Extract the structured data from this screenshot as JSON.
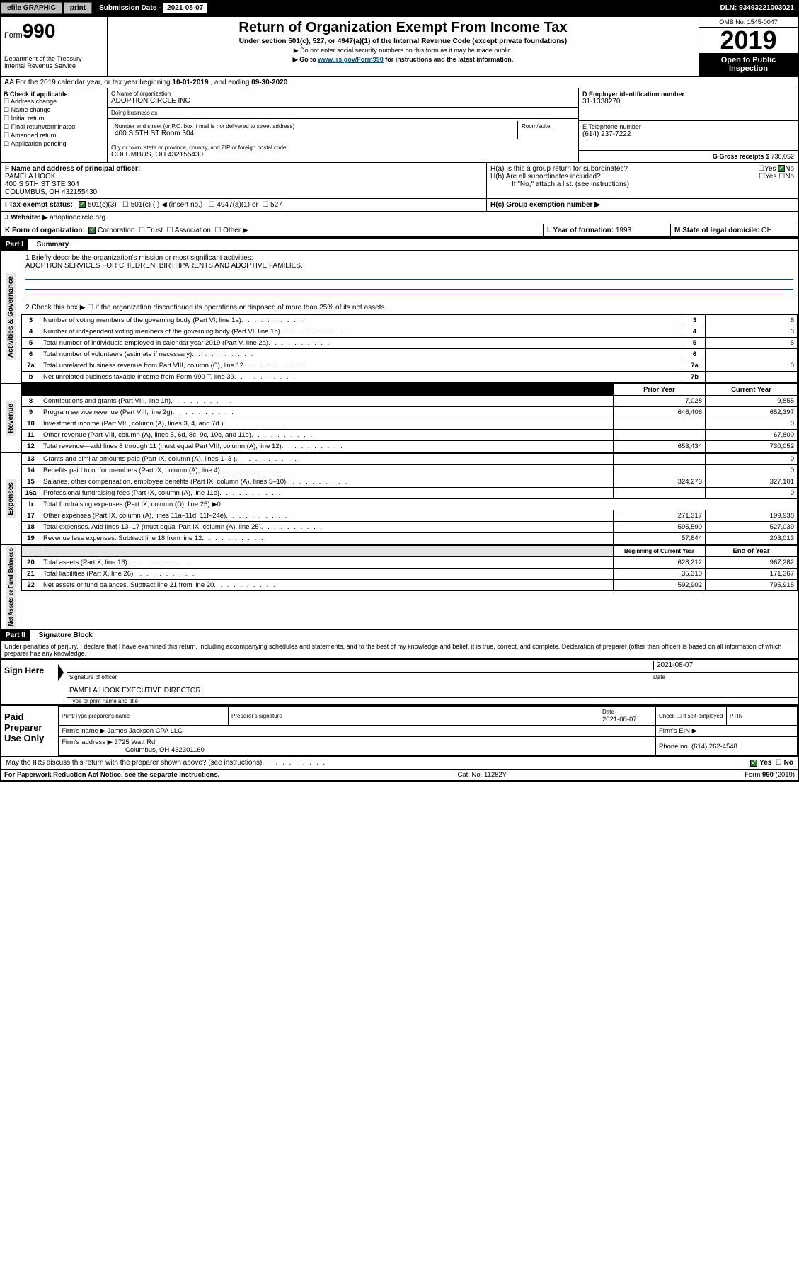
{
  "topbar": {
    "efile_label": "efile GRAPHIC",
    "print_btn": "print",
    "submission_label": "Submission Date - ",
    "submission_date": "2021-08-07",
    "dln": "DLN: 93493221003021"
  },
  "header": {
    "form_prefix": "Form",
    "form_num": "990",
    "dept": "Department of the Treasury\nInternal Revenue Service",
    "title": "Return of Organization Exempt From Income Tax",
    "subtitle": "Under section 501(c), 527, or 4947(a)(1) of the Internal Revenue Code (except private foundations)",
    "note1": "▶ Do not enter social security numbers on this form as it may be made public.",
    "note2_pre": "▶ Go to ",
    "note2_link": "www.irs.gov/Form990",
    "note2_post": " for instructions and the latest information.",
    "omb": "OMB No. 1545-0047",
    "year": "2019",
    "open": "Open to Public Inspection"
  },
  "row_a": {
    "text_pre": "A For the 2019 calendar year, or tax year beginning ",
    "begin": "10-01-2019",
    "mid": " , and ending ",
    "end": "09-30-2020"
  },
  "box_b": {
    "label": "B Check if applicable:",
    "items": [
      "Address change",
      "Name change",
      "Initial return",
      "Final return/terminated",
      "Amended return",
      "Application pending"
    ]
  },
  "box_c": {
    "name_label": "C Name of organization",
    "name": "ADOPTION CIRCLE INC",
    "dba_label": "Doing business as",
    "dba": "",
    "addr_label": "Number and street (or P.O. box if mail is not delivered to street address)",
    "room_label": "Room/suite",
    "addr": "400 S 5TH ST Room 304",
    "city_label": "City or town, state or province, country, and ZIP or foreign postal code",
    "city": "COLUMBUS, OH  432155430"
  },
  "box_d": {
    "label": "D Employer identification number",
    "val": "31-1338270"
  },
  "box_e": {
    "label": "E Telephone number",
    "val": "(614) 237-7222"
  },
  "box_g": {
    "label": "G Gross receipts $ ",
    "val": "730,052"
  },
  "box_f": {
    "label": "F Name and address of principal officer:",
    "name": "PAMELA HOOK",
    "addr1": "400 S 5TH ST STE 304",
    "addr2": "COLUMBUS, OH  432155430"
  },
  "box_h": {
    "a": "H(a)  Is this a group return for subordinates?",
    "b": "H(b)  Are all subordinates included?",
    "b_note": "If \"No,\" attach a list. (see instructions)",
    "c": "H(c)  Group exemption number ▶",
    "yes": "Yes",
    "no": "No"
  },
  "box_i": {
    "label": "I  Tax-exempt status:",
    "o1": "501(c)(3)",
    "o2": "501(c) (   ) ◀ (insert no.)",
    "o3": "4947(a)(1) or",
    "o4": "527"
  },
  "box_j": {
    "label": "J  Website: ▶",
    "val": "adoptioncircle.org"
  },
  "box_k": {
    "label": "K Form of organization:",
    "o1": "Corporation",
    "o2": "Trust",
    "o3": "Association",
    "o4": "Other ▶"
  },
  "box_l": {
    "label": "L Year of formation: ",
    "val": "1993"
  },
  "box_m": {
    "label": "M State of legal domicile: ",
    "val": "OH"
  },
  "part1": {
    "label": "Part I",
    "title": "Summary"
  },
  "gov": {
    "side": "Activities & Governance",
    "l1": "1  Briefly describe the organization's mission or most significant activities:",
    "mission": "ADOPTION SERVICES FOR CHILDREN, BIRTHPARENTS AND ADOPTIVE FAMILIES.",
    "l2": "2   Check this box ▶ ☐  if the organization discontinued its operations or disposed of more than 25% of its net assets.",
    "rows": [
      {
        "n": "3",
        "t": "Number of voting members of the governing body (Part VI, line 1a)",
        "c": "3",
        "v": "6"
      },
      {
        "n": "4",
        "t": "Number of independent voting members of the governing body (Part VI, line 1b)",
        "c": "4",
        "v": "3"
      },
      {
        "n": "5",
        "t": "Total number of individuals employed in calendar year 2019 (Part V, line 2a)",
        "c": "5",
        "v": "5"
      },
      {
        "n": "6",
        "t": "Total number of volunteers (estimate if necessary)",
        "c": "6",
        "v": ""
      },
      {
        "n": "7a",
        "t": "Total unrelated business revenue from Part VIII, column (C), line 12",
        "c": "7a",
        "v": "0"
      },
      {
        "n": "b",
        "t": "Net unrelated business taxable income from Form 990-T, line 39",
        "c": "7b",
        "v": ""
      }
    ]
  },
  "rev": {
    "side": "Revenue",
    "hdr_prior": "Prior Year",
    "hdr_curr": "Current Year",
    "rows": [
      {
        "n": "8",
        "t": "Contributions and grants (Part VIII, line 1h)",
        "p": "7,028",
        "c": "9,855"
      },
      {
        "n": "9",
        "t": "Program service revenue (Part VIII, line 2g)",
        "p": "646,406",
        "c": "652,397"
      },
      {
        "n": "10",
        "t": "Investment income (Part VIII, column (A), lines 3, 4, and 7d )",
        "p": "",
        "c": "0"
      },
      {
        "n": "11",
        "t": "Other revenue (Part VIII, column (A), lines 5, 6d, 8c, 9c, 10c, and 11e)",
        "p": "",
        "c": "67,800"
      },
      {
        "n": "12",
        "t": "Total revenue—add lines 8 through 11 (must equal Part VIII, column (A), line 12)",
        "p": "653,434",
        "c": "730,052"
      }
    ]
  },
  "exp": {
    "side": "Expenses",
    "rows": [
      {
        "n": "13",
        "t": "Grants and similar amounts paid (Part IX, column (A), lines 1–3 )",
        "p": "",
        "c": "0"
      },
      {
        "n": "14",
        "t": "Benefits paid to or for members (Part IX, column (A), line 4)",
        "p": "",
        "c": "0"
      },
      {
        "n": "15",
        "t": "Salaries, other compensation, employee benefits (Part IX, column (A), lines 5–10)",
        "p": "324,273",
        "c": "327,101"
      },
      {
        "n": "16a",
        "t": "Professional fundraising fees (Part IX, column (A), line 11e)",
        "p": "",
        "c": "0"
      },
      {
        "n": "b",
        "t": "Total fundraising expenses (Part IX, column (D), line 25) ▶0",
        "p": null,
        "c": null
      },
      {
        "n": "17",
        "t": "Other expenses (Part IX, column (A), lines 11a–11d, 11f–24e)",
        "p": "271,317",
        "c": "199,938"
      },
      {
        "n": "18",
        "t": "Total expenses. Add lines 13–17 (must equal Part IX, column (A), line 25)",
        "p": "595,590",
        "c": "527,039"
      },
      {
        "n": "19",
        "t": "Revenue less expenses. Subtract line 18 from line 12",
        "p": "57,844",
        "c": "203,013"
      }
    ]
  },
  "net": {
    "side": "Net Assets or Fund Balances",
    "hdr_begin": "Beginning of Current Year",
    "hdr_end": "End of Year",
    "rows": [
      {
        "n": "20",
        "t": "Total assets (Part X, line 16)",
        "p": "628,212",
        "c": "967,282"
      },
      {
        "n": "21",
        "t": "Total liabilities (Part X, line 26)",
        "p": "35,310",
        "c": "171,367"
      },
      {
        "n": "22",
        "t": "Net assets or fund balances. Subtract line 21 from line 20",
        "p": "592,902",
        "c": "795,915"
      }
    ]
  },
  "part2": {
    "label": "Part II",
    "title": "Signature Block"
  },
  "perjury": "Under penalties of perjury, I declare that I have examined this return, including accompanying schedules and statements, and to the best of my knowledge and belief, it is true, correct, and complete. Declaration of preparer (other than officer) is based on all information of which preparer has any knowledge.",
  "sign": {
    "side": "Sign Here",
    "date": "2021-08-07",
    "date_cap": "Date",
    "sig_cap": "Signature of officer",
    "name": "PAMELA HOOK  EXECUTIVE DIRECTOR",
    "name_cap": "Type or print name and title"
  },
  "preparer": {
    "side": "Paid Preparer Use Only",
    "h1": "Print/Type preparer's name",
    "h2": "Preparer's signature",
    "h3": "Date",
    "h4": "Check ☐ if self-employed",
    "h5": "PTIN",
    "date": "2021-08-07",
    "firm_label": "Firm's name    ▶ ",
    "firm": "James Jackson CPA LLC",
    "ein_label": "Firm's EIN ▶",
    "addr_label": "Firm's address ▶ ",
    "addr1": "3725 Watt Rd",
    "addr2": "Columbus, OH  432301160",
    "phone_label": "Phone no. ",
    "phone": "(614) 262-4548"
  },
  "discuss": {
    "text": "May the IRS discuss this return with the preparer shown above? (see instructions)",
    "yes": "Yes",
    "no": "No"
  },
  "footer": {
    "l": "For Paperwork Reduction Act Notice, see the separate instructions.",
    "m": "Cat. No. 11282Y",
    "r": "Form 990 (2019)"
  }
}
